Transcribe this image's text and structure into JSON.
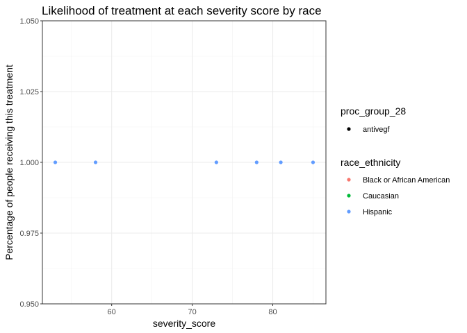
{
  "chart_data": {
    "type": "scatter",
    "title": "Likelihood of treatment at each severity score by race",
    "xlabel": "severity_score",
    "ylabel": "Percentage of people receiving this treatment",
    "xlim": [
      51.4,
      86.6
    ],
    "ylim": [
      0.95,
      1.05
    ],
    "x_ticks": [
      60,
      70,
      80
    ],
    "y_ticks": [
      0.95,
      0.975,
      1.0,
      1.025,
      1.05
    ],
    "x_tick_labels": [
      "60",
      "70",
      "80"
    ],
    "y_tick_labels": [
      "0.950",
      "0.975",
      "1.000",
      "1.025",
      "1.050"
    ],
    "grid": true,
    "legend_placement": "right",
    "legends": [
      {
        "title": "proc_group_28",
        "entries": [
          {
            "label": "antivegf",
            "color": "#000000"
          }
        ]
      },
      {
        "title": "race_ethnicity",
        "entries": [
          {
            "label": "Black or African American",
            "color": "#F8766D"
          },
          {
            "label": "Caucasian",
            "color": "#00BA38"
          },
          {
            "label": "Hispanic",
            "color": "#619CFF"
          }
        ]
      }
    ],
    "series": [
      {
        "name": "Hispanic",
        "color": "#619CFF",
        "points": [
          {
            "x": 53,
            "y": 1.0
          },
          {
            "x": 58,
            "y": 1.0
          },
          {
            "x": 73,
            "y": 1.0
          },
          {
            "x": 78,
            "y": 1.0
          },
          {
            "x": 81,
            "y": 1.0
          },
          {
            "x": 85,
            "y": 1.0
          }
        ]
      }
    ]
  }
}
